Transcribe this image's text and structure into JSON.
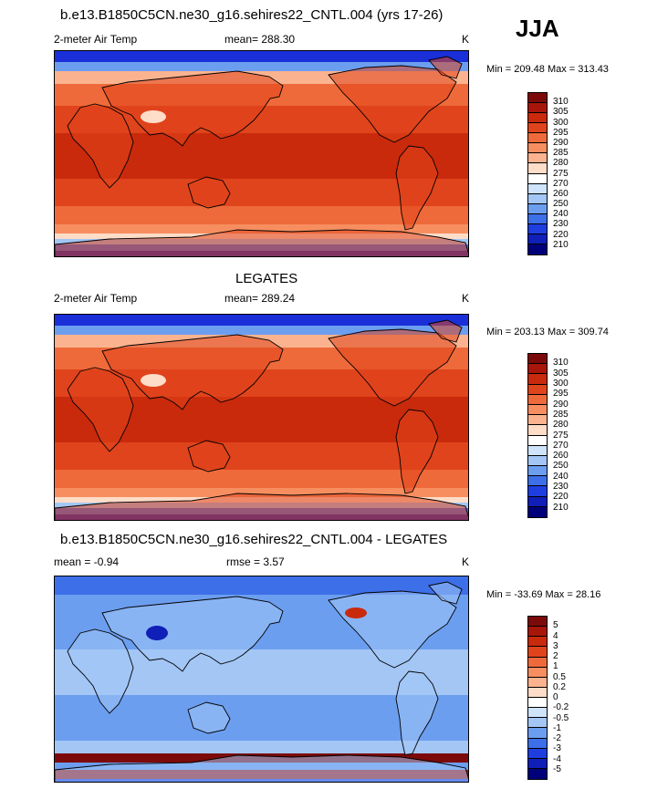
{
  "season": "JJA",
  "panels": [
    {
      "title": "b.e13.B1850C5CN.ne30_g16.sehires22_CNTL.004 (yrs 17-26)",
      "left_label": "2-meter Air Temp",
      "center_label": "mean= 288.30",
      "right_label": "K",
      "minmax": "Min = 209.48 Max = 313.43",
      "colorbar_labels": [
        "310",
        "305",
        "300",
        "295",
        "290",
        "285",
        "280",
        "275",
        "270",
        "260",
        "250",
        "240",
        "230",
        "220",
        "210"
      ],
      "colorbar_colors": [
        "#7d0a0a",
        "#a8160a",
        "#c92a0c",
        "#e0441c",
        "#ef6a3a",
        "#f78e60",
        "#fbb38f",
        "#fddcc8",
        "#ffffff",
        "#cfe3fb",
        "#a3c6f5",
        "#6c9ef0",
        "#3d6fe8",
        "#1f3ee0",
        "#0f1fb8",
        "#00007a"
      ],
      "field": "temp"
    },
    {
      "title": "LEGATES",
      "left_label": "2-meter Air Temp",
      "center_label": "mean= 289.24",
      "right_label": "K",
      "minmax": "Min = 203.13 Max = 309.74",
      "colorbar_labels": [
        "310",
        "305",
        "300",
        "295",
        "290",
        "285",
        "280",
        "275",
        "270",
        "260",
        "250",
        "240",
        "230",
        "220",
        "210"
      ],
      "colorbar_colors": [
        "#7d0a0a",
        "#a8160a",
        "#c92a0c",
        "#e0441c",
        "#ef6a3a",
        "#f78e60",
        "#fbb38f",
        "#fddcc8",
        "#ffffff",
        "#cfe3fb",
        "#a3c6f5",
        "#6c9ef0",
        "#3d6fe8",
        "#1f3ee0",
        "#0f1fb8",
        "#00007a"
      ],
      "field": "temp"
    },
    {
      "title": "b.e13.B1850C5CN.ne30_g16.sehires22_CNTL.004 - LEGATES",
      "left_label": "mean =  -0.94",
      "center_label": "rmse =   3.57",
      "right_label": "K",
      "minmax": "Min = -33.69 Max =  28.16",
      "colorbar_labels": [
        "5",
        "4",
        "3",
        "2",
        "1",
        "0.5",
        "0.2",
        "0",
        "-0.2",
        "-0.5",
        "-1",
        "-2",
        "-3",
        "-4",
        "-5"
      ],
      "colorbar_colors": [
        "#7d0a0a",
        "#a8160a",
        "#c92a0c",
        "#e0441c",
        "#ef6a3a",
        "#f78e60",
        "#fbb38f",
        "#fddcc8",
        "#ffffff",
        "#cfe3fb",
        "#a3c6f5",
        "#6c9ef0",
        "#3d6fe8",
        "#1f3ee0",
        "#0f1fb8",
        "#00007a"
      ],
      "field": "diff"
    }
  ]
}
